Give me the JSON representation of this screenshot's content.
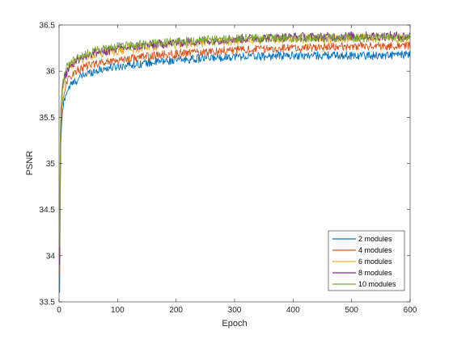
{
  "chart_data": {
    "type": "line",
    "title": "",
    "xlabel": "Epoch",
    "ylabel": "PSNR",
    "xlim": [
      0,
      600
    ],
    "ylim": [
      33.5,
      36.5
    ],
    "xticks": [
      0,
      100,
      200,
      300,
      400,
      500,
      600
    ],
    "yticks": [
      33.5,
      34,
      34.5,
      35,
      35.5,
      36,
      36.5
    ],
    "xtick_labels": [
      "0",
      "100",
      "200",
      "300",
      "400",
      "500",
      "600"
    ],
    "ytick_labels": [
      "33.5",
      "34",
      "34.5",
      "35",
      "35.5",
      "36",
      "36.5"
    ],
    "grid": false,
    "legend_position": "bottom-right",
    "series": [
      {
        "name": "2 modules",
        "color": "#0072BD",
        "x": [
          1,
          2,
          3,
          5,
          8,
          10,
          15,
          20,
          30,
          40,
          50,
          60,
          80,
          100,
          120,
          150,
          200,
          250,
          300,
          350,
          400,
          450,
          500,
          550,
          600
        ],
        "y": [
          33.6,
          34.6,
          35.2,
          35.5,
          35.65,
          35.72,
          35.8,
          35.85,
          35.9,
          35.95,
          35.98,
          36.0,
          36.03,
          36.05,
          36.07,
          36.09,
          36.12,
          36.14,
          36.16,
          36.16,
          36.17,
          36.17,
          36.17,
          36.17,
          36.18
        ],
        "noise": 0.045
      },
      {
        "name": "4 modules",
        "color": "#D95319",
        "x": [
          1,
          2,
          3,
          5,
          8,
          10,
          15,
          20,
          30,
          40,
          50,
          60,
          80,
          100,
          120,
          150,
          200,
          250,
          300,
          350,
          400,
          450,
          500,
          550,
          600
        ],
        "y": [
          33.8,
          34.8,
          35.35,
          35.6,
          35.75,
          35.82,
          35.9,
          35.95,
          36.0,
          36.03,
          36.06,
          36.08,
          36.1,
          36.12,
          36.14,
          36.16,
          36.19,
          36.21,
          36.23,
          36.24,
          36.25,
          36.26,
          36.27,
          36.27,
          36.28
        ],
        "noise": 0.045
      },
      {
        "name": "6 modules",
        "color": "#EDB120",
        "x": [
          1,
          2,
          3,
          5,
          8,
          10,
          15,
          20,
          30,
          40,
          50,
          60,
          80,
          100,
          120,
          150,
          200,
          250,
          300,
          350,
          400,
          450,
          500,
          550,
          600
        ],
        "y": [
          34.0,
          35.0,
          35.5,
          35.72,
          35.85,
          35.92,
          36.0,
          36.05,
          36.1,
          36.13,
          36.16,
          36.18,
          36.2,
          36.22,
          36.24,
          36.26,
          36.29,
          36.31,
          36.33,
          36.34,
          36.35,
          36.35,
          36.36,
          36.36,
          36.36
        ],
        "noise": 0.05
      },
      {
        "name": "8 modules",
        "color": "#7E2F8E",
        "x": [
          1,
          2,
          3,
          5,
          8,
          10,
          15,
          20,
          30,
          40,
          50,
          60,
          80,
          100,
          120,
          150,
          200,
          250,
          300,
          350,
          400,
          450,
          500,
          550,
          600
        ],
        "y": [
          33.9,
          35.1,
          35.55,
          35.75,
          35.88,
          35.95,
          36.02,
          36.07,
          36.12,
          36.15,
          36.18,
          36.2,
          36.22,
          36.24,
          36.26,
          36.28,
          36.31,
          36.33,
          36.35,
          36.36,
          36.37,
          36.37,
          36.38,
          36.38,
          36.38
        ],
        "noise": 0.05
      },
      {
        "name": "10 modules",
        "color": "#77AC30",
        "x": [
          1,
          2,
          3,
          5,
          8,
          10,
          15,
          20,
          30,
          40,
          50,
          60,
          80,
          100,
          120,
          150,
          200,
          250,
          300,
          350,
          400,
          450,
          500,
          550,
          600
        ],
        "y": [
          34.1,
          35.2,
          35.6,
          35.8,
          35.92,
          36.0,
          36.06,
          36.1,
          36.14,
          36.17,
          36.2,
          36.22,
          36.25,
          36.27,
          36.28,
          36.3,
          36.32,
          36.34,
          36.35,
          36.36,
          36.36,
          36.36,
          36.36,
          36.36,
          36.36
        ],
        "noise": 0.045
      }
    ]
  }
}
